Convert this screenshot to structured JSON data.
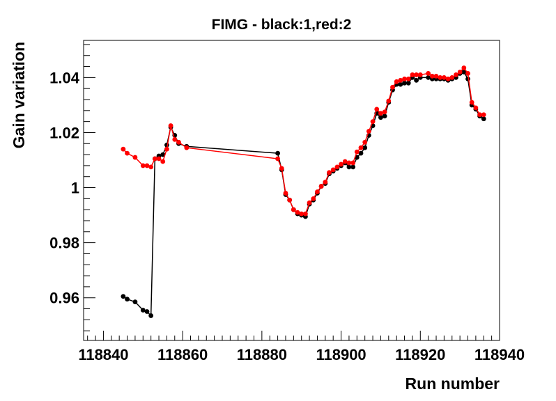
{
  "chart_data": {
    "type": "line",
    "title": "FIMG - black:1,red:2",
    "xlabel": "Run number",
    "ylabel": "Gain variation",
    "xlim": [
      118835,
      118940
    ],
    "ylim": [
      0.9445,
      1.0535
    ],
    "xticks": [
      118840,
      118860,
      118880,
      118900,
      118920,
      118940
    ],
    "yticks": [
      0.96,
      0.98,
      1,
      1.02,
      1.04
    ],
    "grid": false,
    "legend": "none",
    "series": [
      {
        "color": "#000000",
        "x": [
          118845,
          118846,
          118848,
          118850,
          118851,
          118852,
          118853,
          118854,
          118855,
          118856,
          118857,
          118858,
          118859,
          118861,
          118884,
          118885,
          118886,
          118887,
          118888,
          118889,
          118890,
          118891,
          118892,
          118893,
          118894,
          118895,
          118896,
          118897,
          118898,
          118899,
          118900,
          118901,
          118902,
          118903,
          118904,
          118905,
          118906,
          118907,
          118908,
          118909,
          118910,
          118911,
          118912,
          118913,
          118914,
          118915,
          118916,
          118917,
          118918,
          118919,
          118920,
          118922,
          118923,
          118924,
          118925,
          118926,
          118927,
          118928,
          118929,
          118930,
          118931,
          118932,
          118933,
          118934,
          118935,
          118936
        ],
        "y": [
          0.9605,
          0.9595,
          0.9585,
          0.9555,
          0.955,
          0.9535,
          1.0105,
          1.0115,
          1.012,
          1.0155,
          1.022,
          1.019,
          1.016,
          1.015,
          1.0125,
          1.0065,
          0.9975,
          0.9955,
          0.992,
          0.9905,
          0.99,
          0.9895,
          0.994,
          0.9955,
          0.998,
          1.0005,
          1.0015,
          1.005,
          1.006,
          1.007,
          1.008,
          1.009,
          1.0075,
          1.0075,
          1.011,
          1.0125,
          1.0145,
          1.019,
          1.0225,
          1.027,
          1.0255,
          1.026,
          1.031,
          1.0355,
          1.0375,
          1.0375,
          1.038,
          1.038,
          1.04,
          1.039,
          1.04,
          1.04,
          1.0395,
          1.0395,
          1.0395,
          1.0395,
          1.039,
          1.0395,
          1.04,
          1.0415,
          1.042,
          1.0395,
          1.03,
          1.0285,
          1.026,
          1.025
        ]
      },
      {
        "color": "#ff0000",
        "x": [
          118845,
          118846,
          118848,
          118850,
          118851,
          118852,
          118853,
          118854,
          118855,
          118856,
          118857,
          118858,
          118859,
          118861,
          118884,
          118885,
          118886,
          118887,
          118888,
          118889,
          118890,
          118891,
          118892,
          118893,
          118894,
          118895,
          118896,
          118897,
          118898,
          118899,
          118900,
          118901,
          118902,
          118903,
          118904,
          118905,
          118906,
          118907,
          118908,
          118909,
          118910,
          118911,
          118912,
          118913,
          118914,
          118915,
          118916,
          118917,
          118918,
          118919,
          118920,
          118922,
          118923,
          118924,
          118925,
          118926,
          118927,
          118928,
          118929,
          118930,
          118931,
          118932,
          118933,
          118934,
          118935,
          118936
        ],
        "y": [
          1.014,
          1.0125,
          1.011,
          1.008,
          1.008,
          1.0075,
          1.0105,
          1.0105,
          1.0095,
          1.014,
          1.0225,
          1.0175,
          1.0165,
          1.0145,
          1.0105,
          1.007,
          0.998,
          0.9955,
          0.992,
          0.991,
          0.9905,
          0.9905,
          0.9945,
          0.996,
          0.9985,
          1.0005,
          1.002,
          1.0055,
          1.0065,
          1.0075,
          1.0085,
          1.0095,
          1.009,
          1.009,
          1.013,
          1.0145,
          1.0165,
          1.0205,
          1.024,
          1.0285,
          1.027,
          1.0275,
          1.0315,
          1.0365,
          1.0385,
          1.039,
          1.0395,
          1.0395,
          1.041,
          1.041,
          1.041,
          1.0415,
          1.0405,
          1.0405,
          1.04,
          1.04,
          1.0395,
          1.04,
          1.041,
          1.042,
          1.0435,
          1.0415,
          1.031,
          1.029,
          1.0265,
          1.0265
        ]
      }
    ]
  }
}
